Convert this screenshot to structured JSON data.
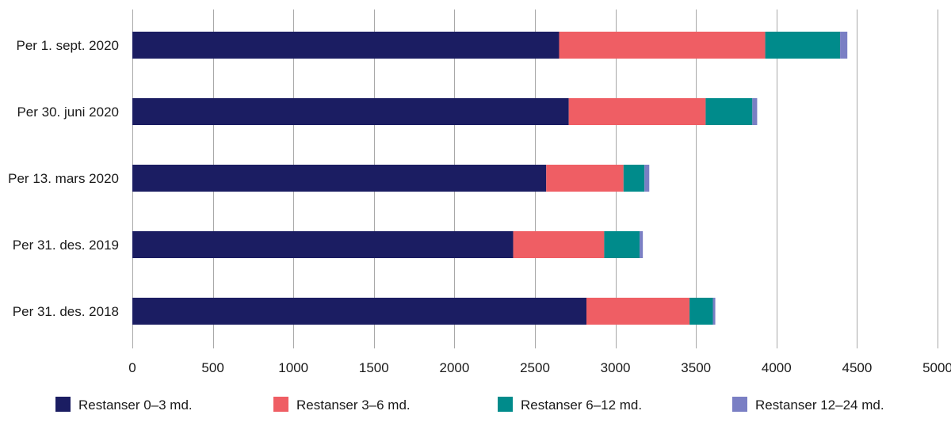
{
  "chart_data": {
    "type": "bar",
    "orientation": "horizontal",
    "stacked": true,
    "categories": [
      "Per 1. sept. 2020",
      "Per 30. juni 2020",
      "Per 13. mars 2020",
      "Per 31. des. 2019",
      "Per 31. des. 2018"
    ],
    "series": [
      {
        "name": "Restanser 0–3 md.",
        "color": "#1b1d62",
        "values": [
          2650,
          2710,
          2570,
          2365,
          2820
        ]
      },
      {
        "name": "Restanser 3–6 md.",
        "color": "#ef5e64",
        "values": [
          1280,
          850,
          480,
          565,
          640
        ]
      },
      {
        "name": "Restanser 6–12 md.",
        "color": "#008b8b",
        "values": [
          465,
          290,
          130,
          220,
          145
        ]
      },
      {
        "name": "Restanser 12–24 md.",
        "color": "#7a7fc4",
        "values": [
          45,
          30,
          30,
          20,
          15
        ]
      }
    ],
    "xlim": [
      0,
      5000
    ],
    "xticks": [
      0,
      500,
      1000,
      1500,
      2000,
      2500,
      3000,
      3500,
      4000,
      4500,
      5000
    ],
    "grid": true,
    "legend_position": "bottom",
    "title": "",
    "xlabel": "",
    "ylabel": ""
  }
}
